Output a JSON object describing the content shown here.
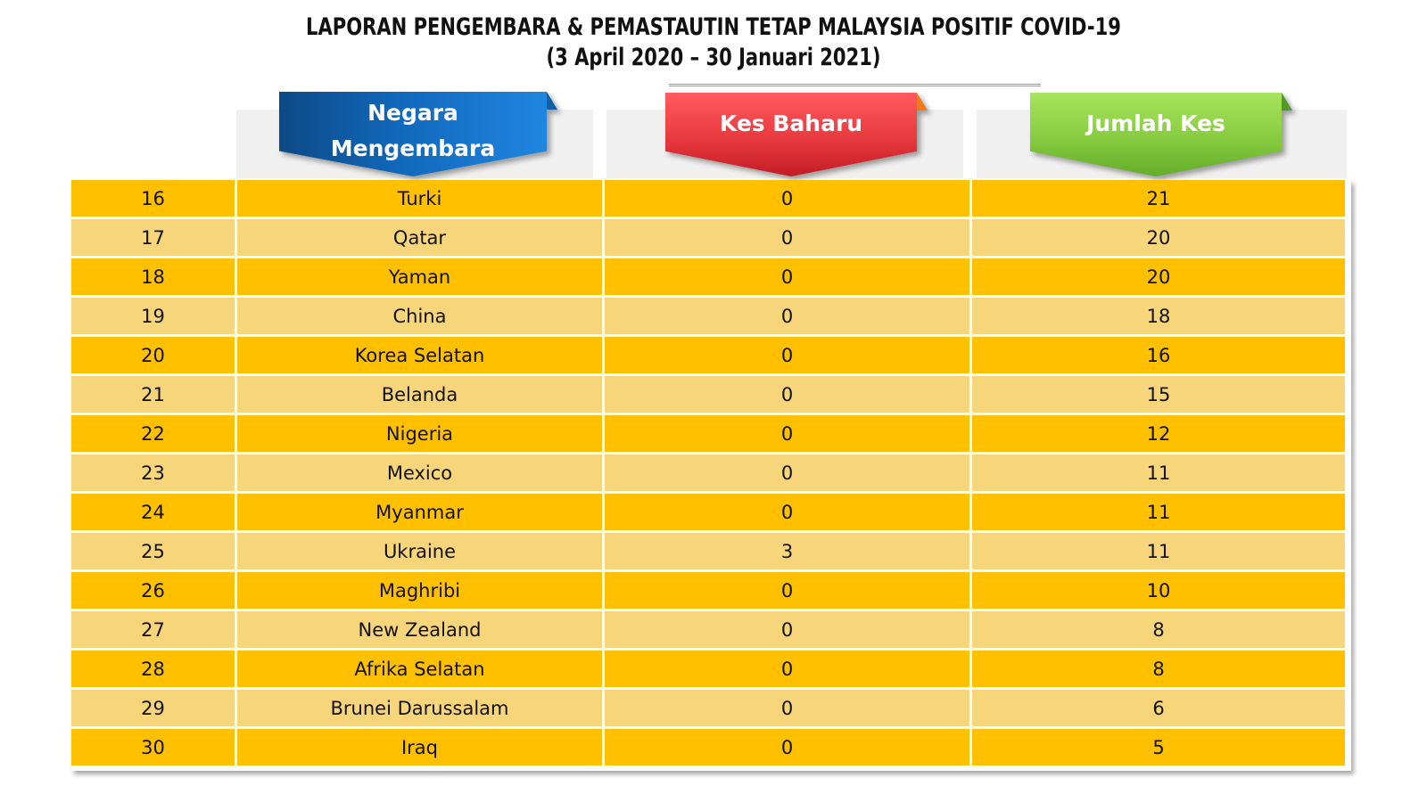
{
  "title": {
    "line1": "LAPORAN PENGEMBARA & PEMASTAUTIN TETAP MALAYSIA POSITIF COVID-19",
    "line2": "(3 April 2020 –  30 Januari 2021)"
  },
  "headers": {
    "country_line1": "Negara",
    "country_line2": "Mengembara",
    "new_cases": "Kes Baharu",
    "total_cases": "Jumlah Kes"
  },
  "colors": {
    "row_dark": "#ffc000",
    "row_light": "#f7d57a",
    "header_country": "#1168bb",
    "header_new": "#e83a3f",
    "header_total": "#86cc40"
  },
  "rows": [
    {
      "no": "16",
      "country": "Turki",
      "new": "0",
      "total": "21"
    },
    {
      "no": "17",
      "country": "Qatar",
      "new": "0",
      "total": "20"
    },
    {
      "no": "18",
      "country": "Yaman",
      "new": "0",
      "total": "20"
    },
    {
      "no": "19",
      "country": "China",
      "new": "0",
      "total": "18"
    },
    {
      "no": "20",
      "country": "Korea Selatan",
      "new": "0",
      "total": "16"
    },
    {
      "no": "21",
      "country": "Belanda",
      "new": "0",
      "total": "15"
    },
    {
      "no": "22",
      "country": "Nigeria",
      "new": "0",
      "total": "12"
    },
    {
      "no": "23",
      "country": "Mexico",
      "new": "0",
      "total": "11"
    },
    {
      "no": "24",
      "country": "Myanmar",
      "new": "0",
      "total": "11"
    },
    {
      "no": "25",
      "country": "Ukraine",
      "new": "3",
      "total": "11"
    },
    {
      "no": "26",
      "country": "Maghribi",
      "new": "0",
      "total": "10"
    },
    {
      "no": "27",
      "country": "New Zealand",
      "new": "0",
      "total": "8"
    },
    {
      "no": "28",
      "country": "Afrika Selatan",
      "new": "0",
      "total": "8"
    },
    {
      "no": "29",
      "country": "Brunei Darussalam",
      "new": "0",
      "total": "6"
    },
    {
      "no": "30",
      "country": "Iraq",
      "new": "0",
      "total": "5"
    }
  ]
}
